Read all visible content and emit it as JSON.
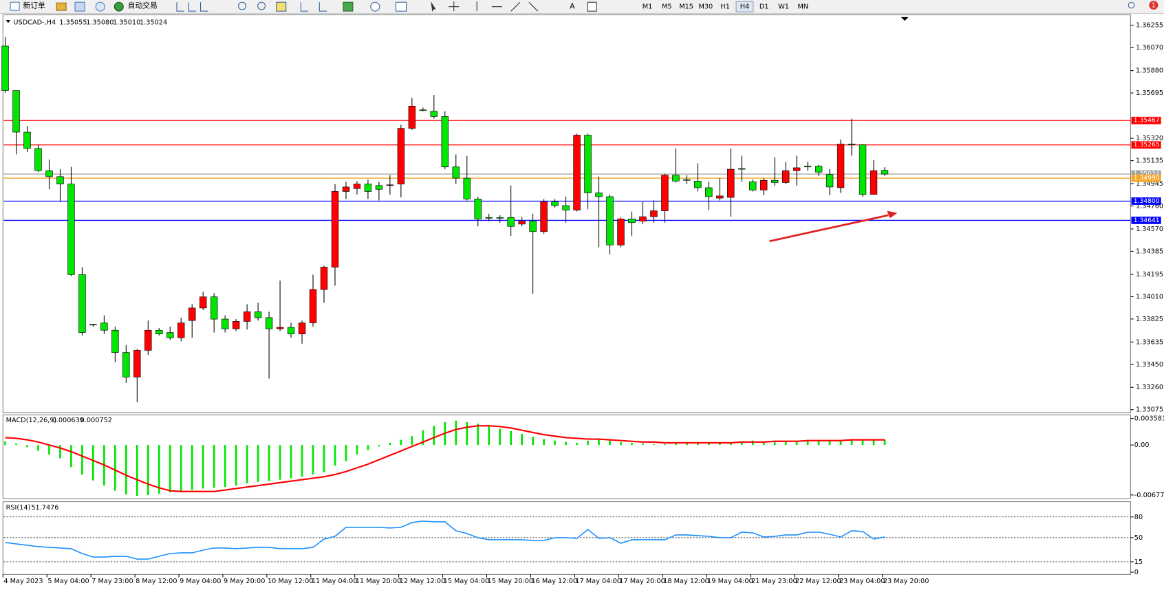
{
  "toolbar": {
    "new_order": "新订单",
    "auto_trading": "自动交易",
    "text_tool": "A",
    "timeframes": [
      "M1",
      "M5",
      "M15",
      "M30",
      "H1",
      "H4",
      "D1",
      "W1",
      "MN"
    ],
    "notifications": 1
  },
  "chart_data": [
    {
      "type": "candlestick",
      "title": "USDCAD-,H4",
      "quote": [
        {
          "value": 1.35055,
          "label": "1.35055"
        },
        {
          "value": 1.3508,
          "label": "1.35080"
        },
        {
          "value": 1.3501,
          "label": "1.35010"
        },
        {
          "value": 1.35024,
          "label": "1.35024"
        }
      ],
      "up_color": "#ff0000",
      "down_color": "#00e600",
      "open": [
        1.36083,
        1.35715,
        1.35371,
        1.35236,
        1.35052,
        1.35003,
        1.34941,
        1.34192,
        1.33781,
        1.33793,
        1.33732,
        1.33548,
        1.33345,
        1.33566,
        1.33732,
        1.33713,
        1.3367,
        1.33812,
        1.33916,
        1.34008,
        1.33824,
        1.33744,
        1.33805,
        1.33885,
        1.33836,
        1.33744,
        1.33756,
        1.33701,
        1.33793,
        1.34069,
        1.34254,
        1.3488,
        1.34904,
        1.34941,
        1.34929,
        1.34929,
        1.34941,
        1.35402,
        1.35555,
        1.35543,
        1.355,
        1.35083,
        1.3499,
        1.34818,
        1.34665,
        1.34665,
        1.34665,
        1.3461,
        1.34634,
        1.34548,
        1.34794,
        1.34763,
        1.34726,
        1.35346,
        1.34868,
        1.34837,
        1.34437,
        1.34653,
        1.34634,
        1.34671,
        1.3472,
        1.35015,
        1.34978,
        1.34966,
        1.34911,
        1.34825,
        1.34831,
        1.3507,
        1.3496,
        1.34892,
        1.34972,
        1.34954,
        1.35052,
        1.35089,
        1.35089,
        1.35021,
        1.34911,
        1.35272,
        1.35266,
        1.34855,
        1.35055
      ],
      "high": [
        1.36157,
        1.35715,
        1.3542,
        1.35267,
        1.35144,
        1.35064,
        1.35083,
        1.34254,
        1.33785,
        1.33855,
        1.33762,
        1.33609,
        1.33578,
        1.33812,
        1.3375,
        1.33762,
        1.33836,
        1.33947,
        1.34051,
        1.34039,
        1.33855,
        1.33824,
        1.33947,
        1.33959,
        1.33885,
        1.34143,
        1.33793,
        1.33812,
        1.34192,
        1.34266,
        1.34941,
        1.3496,
        1.34966,
        1.34978,
        1.3496,
        1.35015,
        1.35432,
        1.35654,
        1.35574,
        1.35678,
        1.35543,
        1.35187,
        1.35175,
        1.34837,
        1.34696,
        1.34683,
        1.34929,
        1.34671,
        1.34696,
        1.34818,
        1.34818,
        1.34837,
        1.35359,
        1.35359,
        1.35003,
        1.34855,
        1.34665,
        1.34714,
        1.34794,
        1.34806,
        1.35027,
        1.35236,
        1.35015,
        1.35113,
        1.3496,
        1.3499,
        1.35236,
        1.35175,
        1.34978,
        1.3499,
        1.35162,
        1.35125,
        1.35175,
        1.35125,
        1.35101,
        1.35064,
        1.3531,
        1.35482,
        1.35272,
        1.35138,
        1.3508
      ],
      "low": [
        1.35697,
        1.35187,
        1.35205,
        1.3504,
        1.34898,
        1.34794,
        1.3418,
        1.33689,
        1.33762,
        1.33701,
        1.33468,
        1.33296,
        1.33136,
        1.33529,
        1.33689,
        1.33652,
        1.3364,
        1.3367,
        1.33898,
        1.33713,
        1.33713,
        1.33726,
        1.33738,
        1.33812,
        1.33333,
        1.33726,
        1.3367,
        1.33621,
        1.33762,
        1.33959,
        1.341,
        1.34818,
        1.34855,
        1.34818,
        1.34806,
        1.34855,
        1.34831,
        1.3539,
        1.35543,
        1.35482,
        1.35064,
        1.34941,
        1.34806,
        1.34591,
        1.34634,
        1.34622,
        1.34511,
        1.34591,
        1.34033,
        1.3453,
        1.34745,
        1.34622,
        1.34714,
        1.34732,
        1.34419,
        1.34358,
        1.34419,
        1.34511,
        1.3461,
        1.34622,
        1.34622,
        1.34954,
        1.34941,
        1.3488,
        1.34726,
        1.34806,
        1.34671,
        1.3496,
        1.3488,
        1.34849,
        1.34929,
        1.34941,
        1.34929,
        1.35052,
        1.35009,
        1.34849,
        1.34868,
        1.35175,
        1.34837,
        1.34855,
        1.3501
      ],
      "close": [
        1.35715,
        1.35371,
        1.35236,
        1.35052,
        1.35003,
        1.34941,
        1.34192,
        1.33713,
        1.33775,
        1.33732,
        1.33548,
        1.33345,
        1.33566,
        1.33732,
        1.33701,
        1.3367,
        1.33793,
        1.33916,
        1.34008,
        1.33824,
        1.33744,
        1.33805,
        1.33885,
        1.33836,
        1.33744,
        1.33756,
        1.33701,
        1.33793,
        1.34069,
        1.34254,
        1.3488,
        1.34917,
        1.34941,
        1.3488,
        1.34898,
        1.34935,
        1.35402,
        1.35586,
        1.35549,
        1.355,
        1.35083,
        1.3499,
        1.34818,
        1.34653,
        1.3466,
        1.34662,
        1.34591,
        1.34634,
        1.34548,
        1.34794,
        1.34763,
        1.34726,
        1.35346,
        1.34868,
        1.34837,
        1.34437,
        1.34653,
        1.34622,
        1.34671,
        1.3472,
        1.35015,
        1.34966,
        1.34972,
        1.34911,
        1.34837,
        1.34843,
        1.35064,
        1.35064,
        1.34892,
        1.34972,
        1.34954,
        1.35052,
        1.35076,
        1.35083,
        1.3504,
        1.34917,
        1.35272,
        1.35266,
        1.34855,
        1.35052,
        1.35024
      ],
      "xlim": [
        0,
        80
      ],
      "xticks": [
        {
          "value": 0,
          "label": "4 May 2023"
        },
        {
          "value": 4,
          "label": "5 May 04:00"
        },
        {
          "value": 8,
          "label": "7 May 23:00"
        },
        {
          "value": 12,
          "label": "8 May 12:00"
        },
        {
          "value": 16,
          "label": "9 May 04:00"
        },
        {
          "value": 20,
          "label": "9 May 20:00"
        },
        {
          "value": 24,
          "label": "10 May 12:00"
        },
        {
          "value": 28,
          "label": "11 May 04:00"
        },
        {
          "value": 32,
          "label": "11 May 20:00"
        },
        {
          "value": 36,
          "label": "12 May 12:00"
        },
        {
          "value": 40,
          "label": "15 May 04:00"
        },
        {
          "value": 44,
          "label": "15 May 20:00"
        },
        {
          "value": 48,
          "label": "16 May 12:00"
        },
        {
          "value": 52,
          "label": "17 May 04:00"
        },
        {
          "value": 56,
          "label": "17 May 20:00"
        },
        {
          "value": 60,
          "label": "18 May 12:00"
        },
        {
          "value": 64,
          "label": "19 May 04:00"
        },
        {
          "value": 68,
          "label": "21 May 23:00"
        },
        {
          "value": 72,
          "label": "22 May 12:00"
        },
        {
          "value": 76,
          "label": "23 May 04:00"
        },
        {
          "value": 80,
          "label": "23 May 20:00"
        }
      ],
      "ylim": [
        1.33075,
        1.36255
      ],
      "yticks": [
        {
          "value": 1.36255,
          "label": "1.36255"
        },
        {
          "value": 1.3607,
          "label": "1.36070"
        },
        {
          "value": 1.3588,
          "label": "1.35880"
        },
        {
          "value": 1.35695,
          "label": "1.35695"
        },
        {
          "value": 1.3532,
          "label": "1.35320"
        },
        {
          "value": 1.35135,
          "label": "1.35135"
        },
        {
          "value": 1.34945,
          "label": "1.34945"
        },
        {
          "value": 1.3476,
          "label": "1.34760"
        },
        {
          "value": 1.3457,
          "label": "1.34570"
        },
        {
          "value": 1.34385,
          "label": "1.34385"
        },
        {
          "value": 1.34195,
          "label": "1.34195"
        },
        {
          "value": 1.3401,
          "label": "1.34010"
        },
        {
          "value": 1.33825,
          "label": "1.33825"
        },
        {
          "value": 1.33635,
          "label": "1.33635"
        },
        {
          "value": 1.3345,
          "label": "1.33450"
        },
        {
          "value": 1.3326,
          "label": "1.33260"
        },
        {
          "value": 1.33075,
          "label": "1.33075"
        }
      ],
      "levels": [
        {
          "value": 1.35467,
          "label": "1.35467",
          "color": "#ff0000"
        },
        {
          "value": 1.35265,
          "label": "1.35265",
          "color": "#ff0000"
        },
        {
          "value": 1.35024,
          "label": "1.35024",
          "color": "#a0a0a0"
        },
        {
          "value": 1.3499,
          "label": "1.34990",
          "color": "#f5a623"
        },
        {
          "value": 1.348,
          "label": "1.34800",
          "color": "#0000ff"
        },
        {
          "value": 1.34641,
          "label": "1.34641",
          "color": "#0000ff"
        }
      ]
    },
    {
      "type": "macd",
      "title": "MACD(12,26,9)",
      "readout": [
        0.000639,
        0.000752
      ],
      "ylim": [
        -0.006775,
        0.003581
      ],
      "yticks": [
        0.003581,
        {
          "value": 0,
          "label": "0.00"
        },
        -0.006775
      ],
      "histogram": {
        "color": "#00e600",
        "values": [
          0.0005,
          0.0002,
          -0.0003,
          -0.0008,
          -0.0013,
          -0.0018,
          -0.003,
          -0.004,
          -0.0048,
          -0.0055,
          -0.0062,
          -0.0067,
          -0.0069,
          -0.0068,
          -0.0066,
          -0.0064,
          -0.0063,
          -0.0061,
          -0.0059,
          -0.0058,
          -0.0057,
          -0.0055,
          -0.0052,
          -0.005,
          -0.0049,
          -0.0047,
          -0.0045,
          -0.0043,
          -0.004,
          -0.0037,
          -0.0028,
          -0.0022,
          -0.0013,
          -0.0007,
          -0.0002,
          0.0003,
          0.0007,
          0.0012,
          0.002,
          0.0026,
          0.0031,
          0.0033,
          0.0031,
          0.0029,
          0.0026,
          0.0022,
          0.0019,
          0.0015,
          0.0011,
          0.0008,
          0.0006,
          0.0004,
          0.0003,
          0.0006,
          0.0007,
          0.0006,
          0.0004,
          0.0003,
          0.0002,
          0.0001,
          0.0001,
          0.0003,
          0.0004,
          0.0004,
          0.0003,
          0.0002,
          0.0003,
          0.0005,
          0.0006,
          0.0005,
          0.0005,
          0.0005,
          0.0006,
          0.0007,
          0.0007,
          0.0006,
          0.0006,
          0.0008,
          0.0008,
          0.0008,
          0.0007
        ]
      },
      "signal": {
        "color": "#ff0000",
        "values": [
          0.001,
          0.0009,
          0.0007,
          0.0004,
          0.0,
          -0.0004,
          -0.0009,
          -0.0015,
          -0.0021,
          -0.0027,
          -0.0034,
          -0.0041,
          -0.0047,
          -0.0053,
          -0.0058,
          -0.0062,
          -0.0063,
          -0.0063,
          -0.0063,
          -0.0063,
          -0.0061,
          -0.0059,
          -0.0057,
          -0.0055,
          -0.0053,
          -0.0051,
          -0.0049,
          -0.0047,
          -0.0045,
          -0.0043,
          -0.004,
          -0.0036,
          -0.0031,
          -0.0026,
          -0.002,
          -0.0014,
          -0.0008,
          -0.0002,
          0.0004,
          0.001,
          0.0016,
          0.0021,
          0.0024,
          0.0026,
          0.0026,
          0.0025,
          0.0023,
          0.002,
          0.0017,
          0.0014,
          0.0012,
          0.001,
          0.0009,
          0.0008,
          0.0008,
          0.0007,
          0.0006,
          0.0005,
          0.0004,
          0.0004,
          0.0003,
          0.0003,
          0.0003,
          0.0003,
          0.0003,
          0.0003,
          0.0003,
          0.0004,
          0.0004,
          0.0004,
          0.0005,
          0.0005,
          0.0005,
          0.0006,
          0.0006,
          0.0006,
          0.0006,
          0.0007,
          0.0007,
          0.0007,
          0.0007
        ]
      }
    },
    {
      "type": "rsi",
      "title": "RSI(14)",
      "readout": 51.7476,
      "color": "#1e90ff",
      "ylim": [
        0,
        100
      ],
      "yticks": [
        0,
        15,
        50,
        80
      ],
      "levels": [
        15,
        50,
        80
      ],
      "values": [
        43,
        41,
        39,
        37,
        36,
        35,
        34,
        27,
        22,
        22,
        23,
        23,
        19,
        19,
        23,
        27,
        28,
        28,
        32,
        35,
        35,
        34,
        35,
        36,
        36,
        34,
        34,
        34,
        36,
        48,
        52,
        65,
        65,
        65,
        65,
        64,
        65,
        72,
        74,
        73,
        73,
        60,
        56,
        50,
        47,
        47,
        47,
        47,
        46,
        46,
        50,
        50,
        49,
        62,
        49,
        50,
        42,
        47,
        47,
        47,
        47,
        54,
        54,
        53,
        52,
        50,
        50,
        58,
        57,
        51,
        52,
        54,
        54,
        58,
        58,
        55,
        51,
        60,
        59,
        48,
        51
      ]
    }
  ]
}
